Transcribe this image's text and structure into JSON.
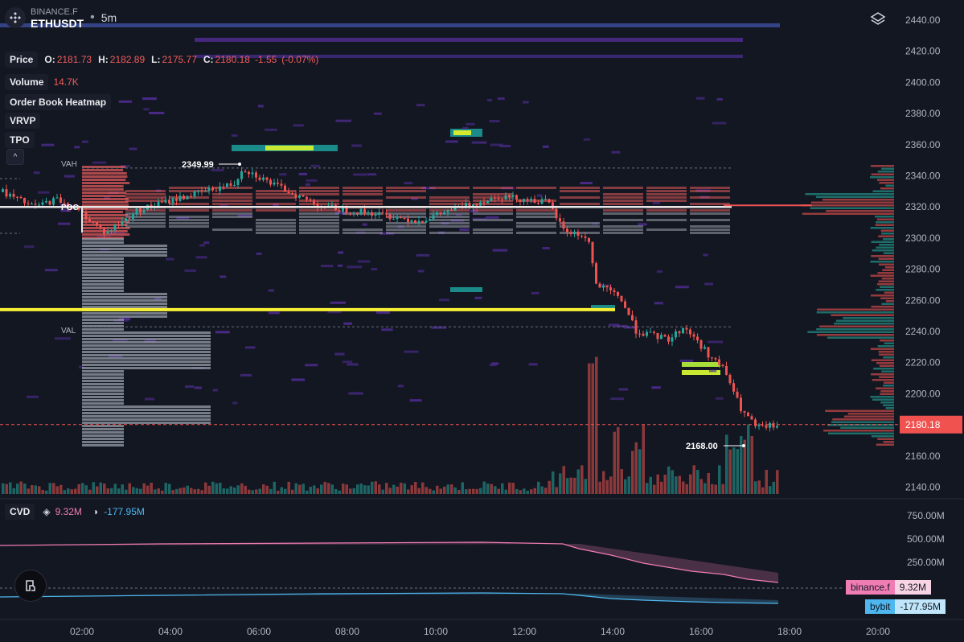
{
  "header": {
    "exchange": "BINANCE.F",
    "symbol_base": "ETH",
    "symbol_quote": "USDT",
    "timeframe": "5m"
  },
  "price_legend": {
    "label": "Price",
    "o_label": "O:",
    "o": "2181.73",
    "h_label": "H:",
    "h": "2182.89",
    "l_label": "L:",
    "l": "2175.77",
    "c_label": "C:",
    "c": "2180.18",
    "change": "-1.55",
    "change_pct": "(-0.07%)"
  },
  "indicators": {
    "volume_label": "Volume",
    "volume_value": "14.7K",
    "heatmap_label": "Order Book Heatmap",
    "vrvp_label": "VRVP",
    "tpo_label": "TPO"
  },
  "profile_labels": {
    "vah": "VAH",
    "poc": "POC",
    "val": "VAL"
  },
  "annotations": {
    "high": "2349.99",
    "low": "2168.00"
  },
  "price_axis": {
    "ticks": [
      "2440.00",
      "2420.00",
      "2400.00",
      "2380.00",
      "2360.00",
      "2340.00",
      "2320.00",
      "2300.00",
      "2280.00",
      "2260.00",
      "2240.00",
      "2220.00",
      "2200.00",
      "2180.00",
      "2160.00",
      "2140.00"
    ],
    "last_price": "2180.18",
    "last_price_color": "#f0524f"
  },
  "time_axis": {
    "ticks": [
      "02:00",
      "04:00",
      "06:00",
      "08:00",
      "10:00",
      "12:00",
      "14:00",
      "16:00",
      "18:00",
      "20:00"
    ]
  },
  "cvd": {
    "label": "CVD",
    "binance_value": "9.32M",
    "bybit_value": "-177.95M",
    "axis_ticks": [
      "750.00M",
      "500.00M",
      "250.00M"
    ],
    "binance_tag": "binance.f",
    "bybit_tag": "bybit",
    "binance_color": "#f07cb4",
    "bybit_color": "#4fb7ef"
  },
  "colors": {
    "background": "#131722",
    "up": "#26a69a",
    "down": "#ef5350",
    "highlight_line": "#f7f035"
  }
}
